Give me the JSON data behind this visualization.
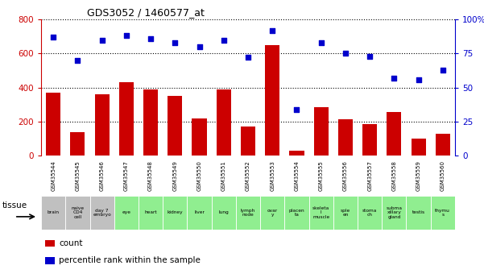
{
  "title": "GDS3052 / 1460577_at",
  "gsm_labels": [
    "GSM35544",
    "GSM35545",
    "GSM35546",
    "GSM35547",
    "GSM35548",
    "GSM35549",
    "GSM35550",
    "GSM35551",
    "GSM35552",
    "GSM35553",
    "GSM35554",
    "GSM35555",
    "GSM35556",
    "GSM35557",
    "GSM35558",
    "GSM35559",
    "GSM35560"
  ],
  "tissue_labels": [
    "brain",
    "naive\nCD4\ncell",
    "day 7\nembryо",
    "eye",
    "heart",
    "kidney",
    "liver",
    "lung",
    "lymph\nnode",
    "ovar\ny",
    "placen\nta",
    "skeleta\nl\nmuscle",
    "sple\nen",
    "stoma\nch",
    "subma\nxillary\ngland",
    "testis",
    "thymu\ns"
  ],
  "tissue_colors": [
    "#c0c0c0",
    "#c0c0c0",
    "#c0c0c0",
    "#90ee90",
    "#90ee90",
    "#90ee90",
    "#90ee90",
    "#90ee90",
    "#90ee90",
    "#90ee90",
    "#90ee90",
    "#90ee90",
    "#90ee90",
    "#90ee90",
    "#90ee90",
    "#90ee90",
    "#90ee90"
  ],
  "bar_values": [
    370,
    140,
    360,
    430,
    390,
    350,
    220,
    390,
    170,
    650,
    30,
    285,
    215,
    185,
    255,
    100,
    130
  ],
  "dot_values": [
    87,
    70,
    85,
    88,
    86,
    83,
    80,
    85,
    72,
    92,
    34,
    83,
    75,
    73,
    57,
    56,
    63
  ],
  "bar_color": "#cc0000",
  "dot_color": "#0000cc",
  "ylim_left": [
    0,
    800
  ],
  "ylim_right": [
    0,
    100
  ],
  "yticks_left": [
    0,
    200,
    400,
    600,
    800
  ],
  "yticks_right": [
    0,
    25,
    50,
    75,
    100
  ],
  "yticklabels_right": [
    "0",
    "25",
    "50",
    "75",
    "100%"
  ],
  "bg_color": "#ffffff",
  "gsm_bg": "#c8c8c8",
  "tissue_row_colors": [
    "#c0c0c0",
    "#c0c0c0",
    "#c0c0c0",
    "#90ee90",
    "#90ee90",
    "#90ee90",
    "#90ee90",
    "#90ee90",
    "#90ee90",
    "#90ee90",
    "#90ee90",
    "#90ee90",
    "#90ee90",
    "#90ee90",
    "#90ee90",
    "#90ee90",
    "#90ee90"
  ]
}
